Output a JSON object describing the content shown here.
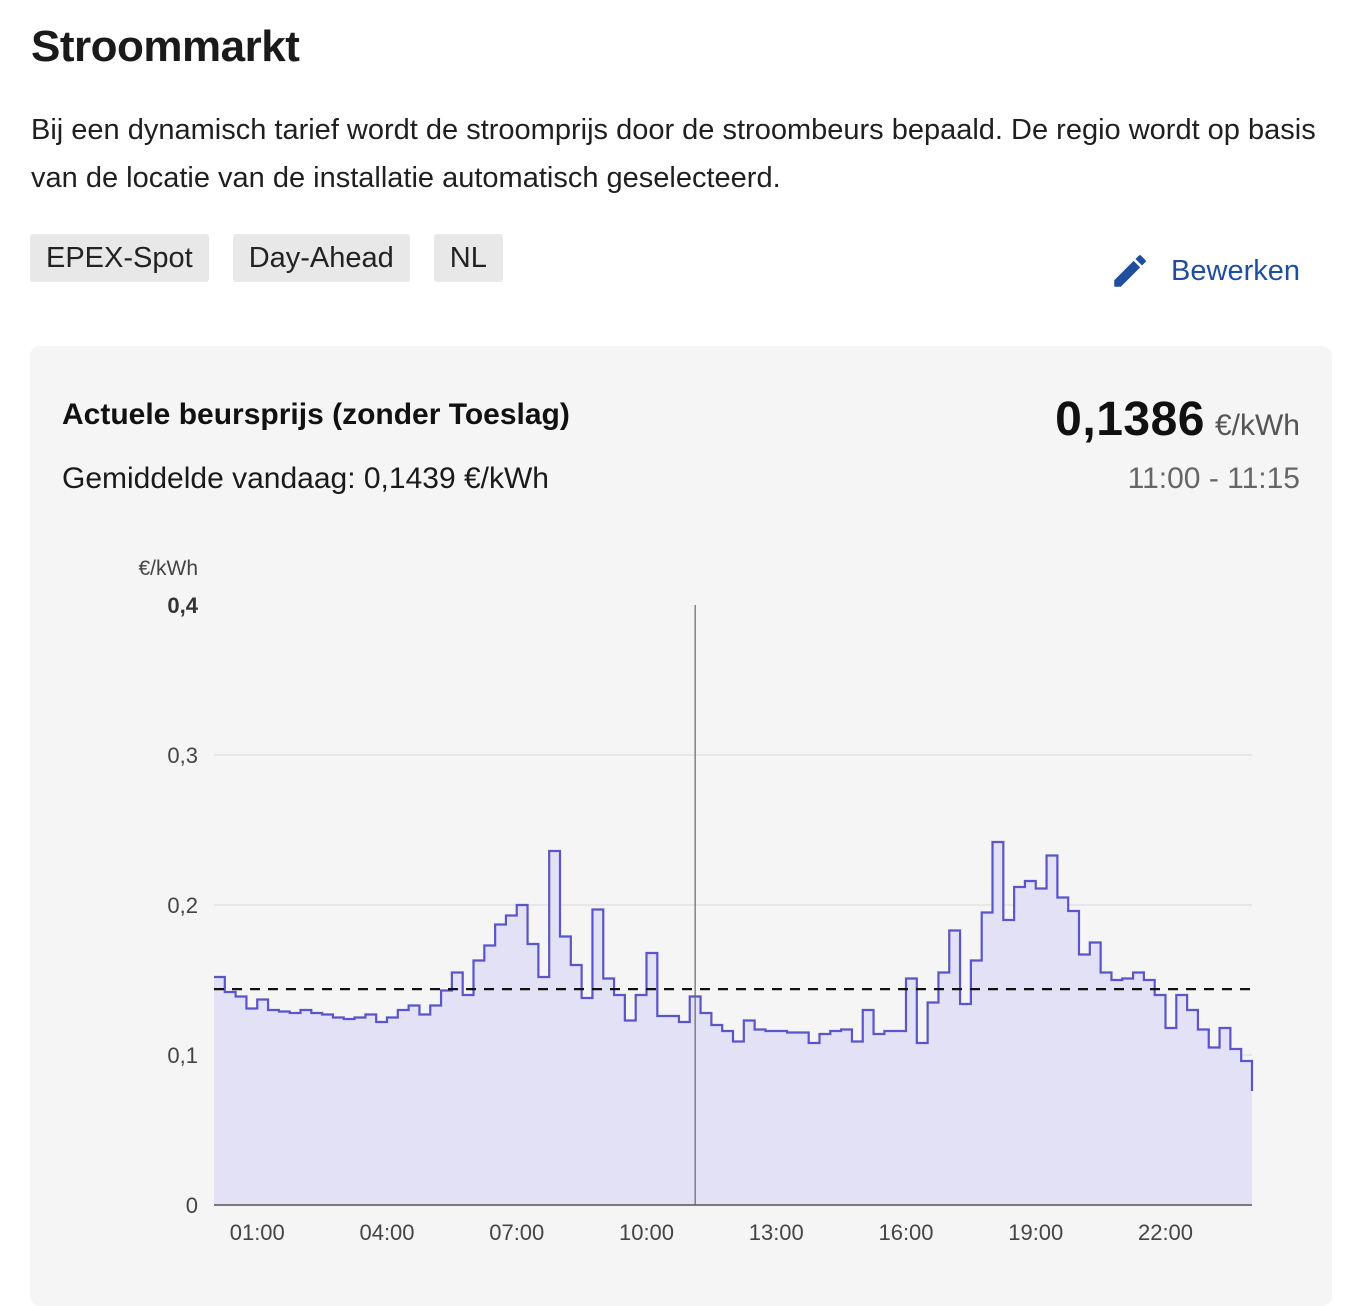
{
  "page": {
    "title": "Stroommarkt",
    "description": "Bij een dynamisch tarief wordt de stroomprijs door de stroombeurs bepaald. De regio wordt op basis van de locatie van de installatie automatisch geselecteerd.",
    "tags": [
      "EPEX-Spot",
      "Day-Ahead",
      "NL"
    ],
    "edit_label": "Bewerken",
    "accent_color": "#1f4f9c"
  },
  "card": {
    "title": "Actuele beursprijs (zonder Toeslag)",
    "average_text": "Gemiddelde vandaag: 0,1439 €/kWh",
    "current_price": "0,1386",
    "current_unit": "€/kWh",
    "current_time": "11:00 - 11:15"
  },
  "chart_data": {
    "type": "area",
    "step": true,
    "ylabel": "€/kWh",
    "ylim": [
      0,
      0.4
    ],
    "y_ticks": [
      "0",
      "0,1",
      "0,2",
      "0,3",
      "0,4"
    ],
    "y_tick_values": [
      0,
      0.1,
      0.2,
      0.3,
      0.4
    ],
    "x_tick_labels": [
      "01:00",
      "04:00",
      "07:00",
      "10:00",
      "13:00",
      "16:00",
      "19:00",
      "22:00"
    ],
    "x_tick_hours": [
      1,
      4,
      7,
      10,
      13,
      16,
      19,
      22
    ],
    "xlim_hours": [
      0,
      24
    ],
    "interval_hours": 0.25,
    "average": 0.1439,
    "current_hour": 11.0,
    "line_color": "#5a55c8",
    "fill_color": "#e3e1f6",
    "values": [
      0.152,
      0.142,
      0.139,
      0.131,
      0.137,
      0.13,
      0.129,
      0.128,
      0.13,
      0.128,
      0.127,
      0.125,
      0.124,
      0.125,
      0.127,
      0.122,
      0.125,
      0.13,
      0.133,
      0.127,
      0.133,
      0.143,
      0.155,
      0.14,
      0.163,
      0.173,
      0.187,
      0.193,
      0.2,
      0.174,
      0.152,
      0.236,
      0.179,
      0.16,
      0.138,
      0.197,
      0.151,
      0.14,
      0.123,
      0.14,
      0.168,
      0.126,
      0.126,
      0.122,
      0.139,
      0.128,
      0.12,
      0.116,
      0.109,
      0.123,
      0.117,
      0.116,
      0.116,
      0.115,
      0.115,
      0.108,
      0.114,
      0.116,
      0.117,
      0.109,
      0.13,
      0.114,
      0.116,
      0.116,
      0.151,
      0.108,
      0.135,
      0.155,
      0.183,
      0.134,
      0.163,
      0.195,
      0.242,
      0.19,
      0.212,
      0.216,
      0.211,
      0.233,
      0.205,
      0.196,
      0.167,
      0.175,
      0.155,
      0.15,
      0.151,
      0.155,
      0.15,
      0.14,
      0.118,
      0.14,
      0.13,
      0.117,
      0.105,
      0.118,
      0.104,
      0.096,
      0.076
    ]
  }
}
